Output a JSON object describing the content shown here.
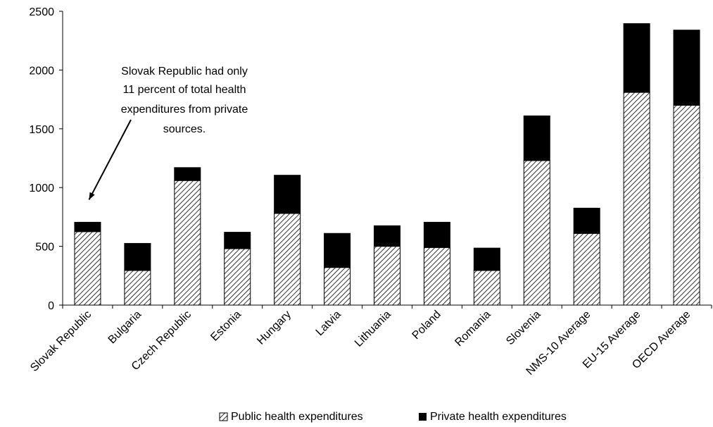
{
  "chart_data": {
    "type": "bar",
    "stacked": true,
    "title": "",
    "xlabel": "",
    "ylabel": "",
    "ylim": [
      0,
      2500
    ],
    "yticks": [
      0,
      500,
      1000,
      1500,
      2000,
      2500
    ],
    "grid": false,
    "legend_position": "bottom",
    "categories": [
      "Slovak Republic",
      "Bulgaria",
      "Czech Republic",
      "Estonia",
      "Hungary",
      "Latvia",
      "Lithuania",
      "Poland",
      "Romania",
      "Slovenia",
      "NMS-10 Average",
      "EU-15 Average",
      "OECD Average"
    ],
    "series": [
      {
        "name": "Public health expenditures",
        "color": "#ffffff",
        "pattern": "diagonal-hatch",
        "values": [
          625,
          295,
          1060,
          480,
          780,
          320,
          500,
          490,
          295,
          1230,
          610,
          1810,
          1700
        ]
      },
      {
        "name": "Private health expenditures",
        "color": "#000000",
        "pattern": "solid",
        "values": [
          80,
          230,
          110,
          140,
          325,
          290,
          175,
          215,
          190,
          380,
          215,
          585,
          640
        ]
      }
    ],
    "annotations": [
      {
        "text_lines": [
          "Slovak Republic had only",
          "11 percent of total health",
          "expenditures from private",
          "sources."
        ],
        "points_to": "Slovak Republic"
      }
    ]
  }
}
